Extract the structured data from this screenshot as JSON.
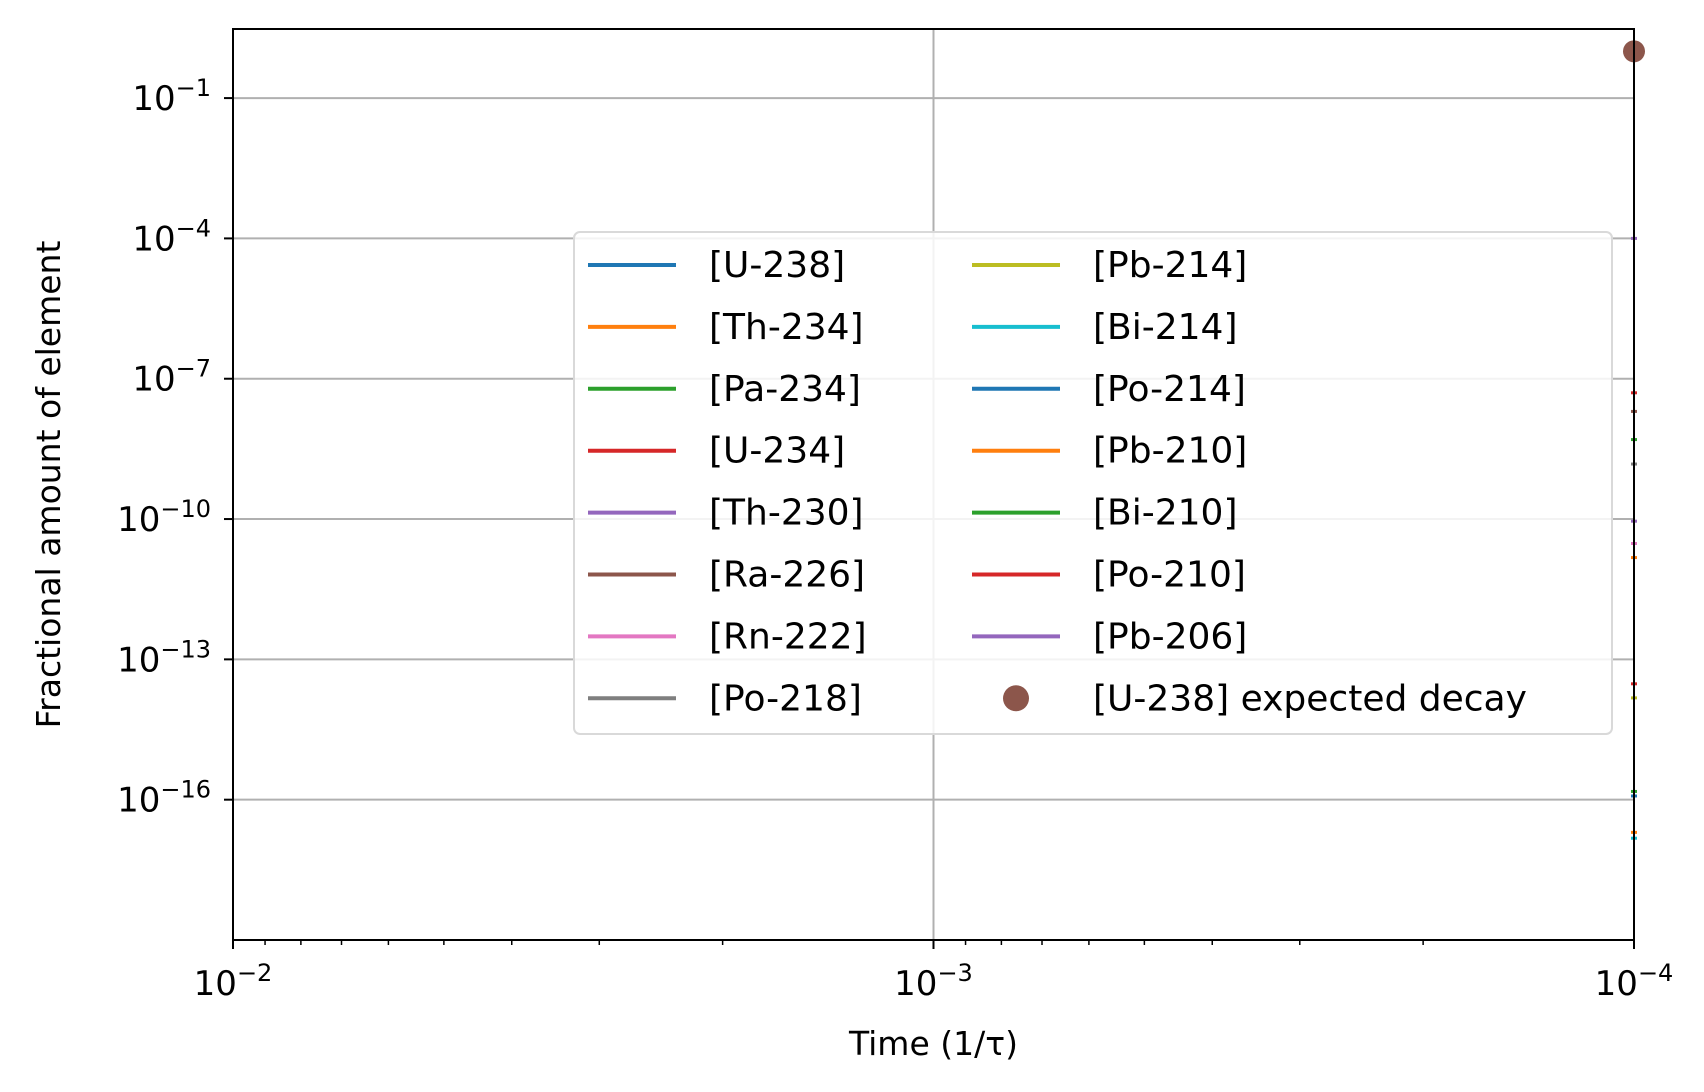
{
  "chart_data": {
    "type": "line",
    "xlabel": "Time (1/τ)",
    "ylabel": "Fractional amount of element",
    "x_scale": "log",
    "x_axis_inverted": true,
    "xlim": [
      0.01,
      0.0001
    ],
    "y_scale": "log",
    "ylim": [
      1e-19,
      3
    ],
    "grid": true,
    "legend_position": "center-right",
    "legend_columns": 2,
    "x_ticks": [
      {
        "value": 0.01,
        "base": "10",
        "exp": "−2"
      },
      {
        "value": 0.001,
        "base": "10",
        "exp": "−3"
      },
      {
        "value": 0.0001,
        "base": "10",
        "exp": "−4"
      }
    ],
    "y_ticks": [
      {
        "value": 0.1,
        "base": "10",
        "exp": "−1"
      },
      {
        "value": 0.0001,
        "base": "10",
        "exp": "−4"
      },
      {
        "value": 1e-07,
        "base": "10",
        "exp": "−7"
      },
      {
        "value": 1e-10,
        "base": "10",
        "exp": "−10"
      },
      {
        "value": 1e-13,
        "base": "10",
        "exp": "−13"
      },
      {
        "value": 1e-16,
        "base": "10",
        "exp": "−16"
      }
    ],
    "series": [
      {
        "name": "[U-238]",
        "color": "#1f77b4",
        "marker": "line",
        "x": [
          0.0001
        ],
        "y": [
          0.9999
        ]
      },
      {
        "name": "[Th-234]",
        "color": "#ff7f0e",
        "marker": "line",
        "x": [
          0.0001
        ],
        "y": [
          1.5e-11
        ]
      },
      {
        "name": "[Pa-234]",
        "color": "#2ca02c",
        "marker": "line",
        "x": [
          0.0001
        ],
        "y": [
          5e-09
        ]
      },
      {
        "name": "[U-234]",
        "color": "#d62728",
        "marker": "line",
        "x": [
          0.0001
        ],
        "y": [
          5e-08
        ]
      },
      {
        "name": "[Th-230]",
        "color": "#9467bd",
        "marker": "line",
        "x": [
          0.0001
        ],
        "y": [
          9e-11
        ]
      },
      {
        "name": "[Ra-226]",
        "color": "#8c564b",
        "marker": "line",
        "x": [
          0.0001
        ],
        "y": [
          2e-08
        ]
      },
      {
        "name": "[Rn-222]",
        "color": "#e377c2",
        "marker": "line",
        "x": [
          0.0001
        ],
        "y": [
          3e-11
        ]
      },
      {
        "name": "[Po-218]",
        "color": "#7f7f7f",
        "marker": "line",
        "x": [
          0.0001
        ],
        "y": [
          1.5e-09
        ]
      },
      {
        "name": "[Pb-214]",
        "color": "#bcbd22",
        "marker": "line",
        "x": [
          0.0001
        ],
        "y": [
          1.5e-14
        ]
      },
      {
        "name": "[Bi-214]",
        "color": "#17becf",
        "marker": "line",
        "x": [
          0.0001
        ],
        "y": [
          1.5e-17
        ]
      },
      {
        "name": "[Po-214]",
        "color": "#1f77b4",
        "marker": "line",
        "x": [
          0.0001
        ],
        "y": [
          1.2e-16
        ]
      },
      {
        "name": "[Pb-210]",
        "color": "#ff7f0e",
        "marker": "line",
        "x": [
          0.0001
        ],
        "y": [
          2e-17
        ]
      },
      {
        "name": "[Bi-210]",
        "color": "#2ca02c",
        "marker": "line",
        "x": [
          0.0001
        ],
        "y": [
          1.5e-16
        ]
      },
      {
        "name": "[Po-210]",
        "color": "#d62728",
        "marker": "line",
        "x": [
          0.0001
        ],
        "y": [
          3e-14
        ]
      },
      {
        "name": "[Pb-206]",
        "color": "#9467bd",
        "marker": "line",
        "x": [
          0.0001
        ],
        "y": [
          0.0001
        ]
      },
      {
        "name": "[U-238] expected decay",
        "color": "#8c564b",
        "marker": "dot",
        "x": [
          0.0001
        ],
        "y": [
          0.9999
        ]
      }
    ]
  }
}
